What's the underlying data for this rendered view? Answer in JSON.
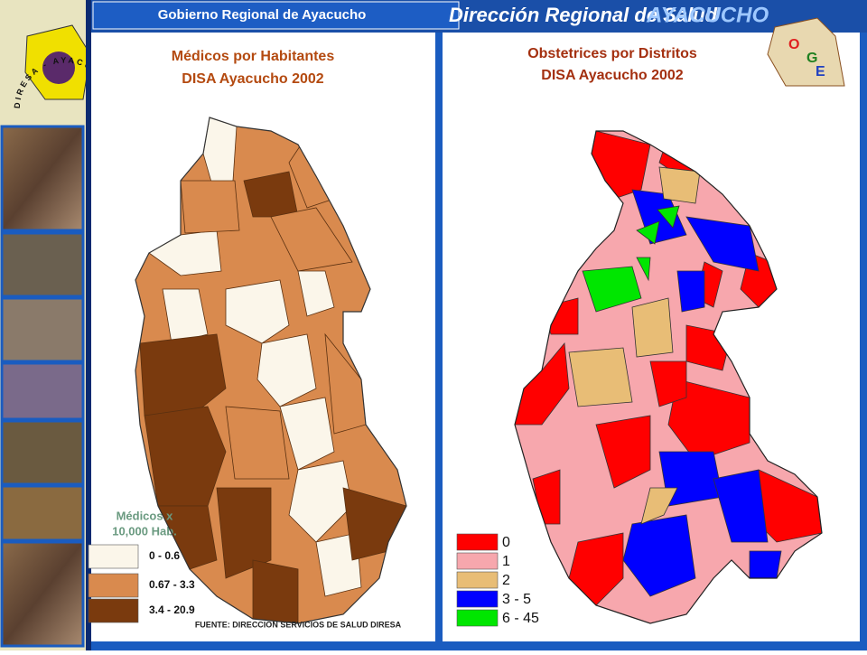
{
  "header": {
    "left_title": "Gobierno Regional de Ayacucho",
    "brand": "Dirección Regional de Salud",
    "region": "AYACUCHO"
  },
  "logo": {
    "text": "DIRESA - AYACUCHO"
  },
  "oge_logo": {
    "letters": [
      "O",
      "G",
      "E"
    ]
  },
  "left_map": {
    "title": [
      "Médicos por Habitantes",
      "DISA Ayacucho 2002"
    ],
    "legend_title": [
      "Médicos x",
      "10,000 Hab."
    ],
    "legend": [
      {
        "label": "0 - 0.6",
        "color": "#fbf6ea"
      },
      {
        "label": "0.67 - 3.3",
        "color": "#d98a4e"
      },
      {
        "label": "3.4 - 20.9",
        "color": "#7a3a0e"
      }
    ],
    "source": "FUENTE: DIRECCION SERVICIOS DE SALUD DIRESA"
  },
  "right_map": {
    "title": [
      "Obstetrices por Distritos",
      "DISA Ayacucho 2002"
    ],
    "legend": [
      {
        "label": "0",
        "color": "#ff0000"
      },
      {
        "label": "1",
        "color": "#f7a7ad"
      },
      {
        "label": "2",
        "color": "#e8bd76"
      },
      {
        "label": "3 - 5",
        "color": "#0000ff"
      },
      {
        "label": "6 - 45",
        "color": "#00e600"
      }
    ]
  }
}
